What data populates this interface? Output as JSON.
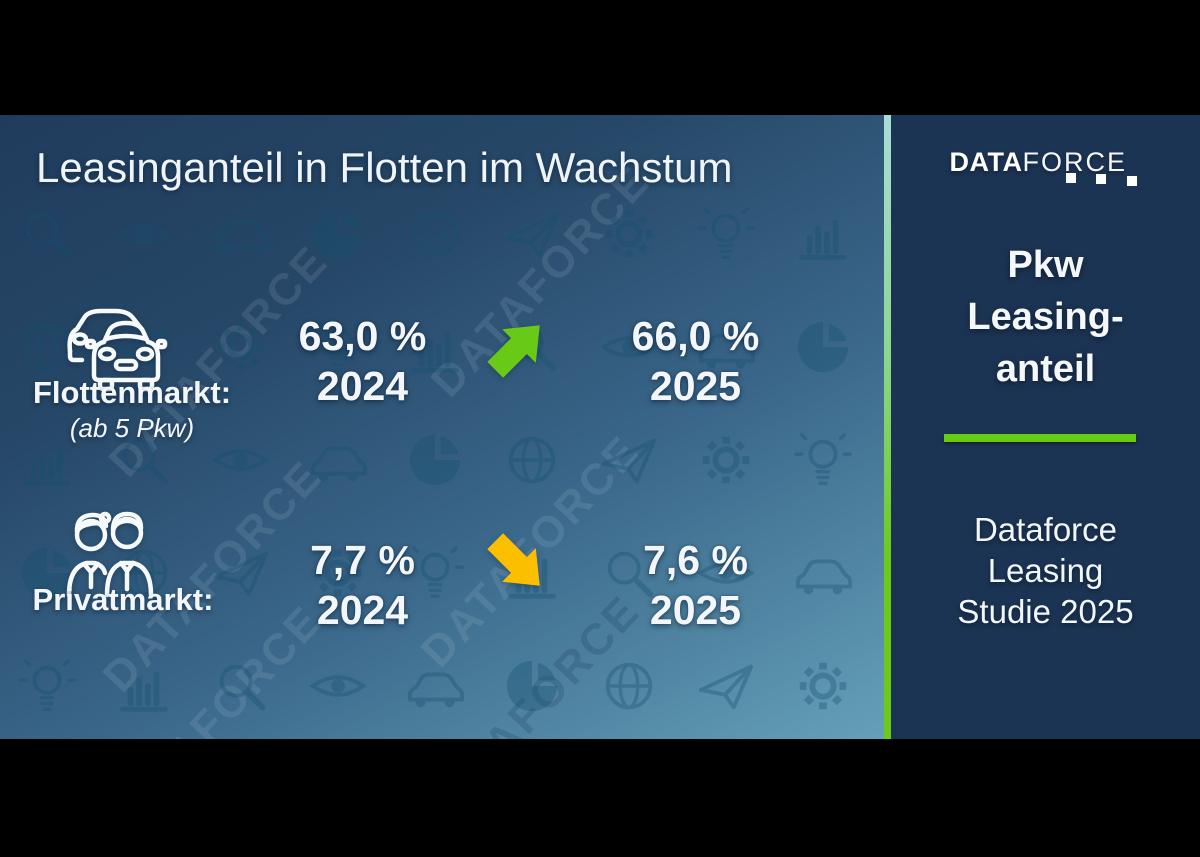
{
  "slide": {
    "title": "Leasinganteil in Flotten im Wachstum"
  },
  "logo": {
    "bold": "DATA",
    "light": "FORCE"
  },
  "sidebar": {
    "heading_line1": "Pkw",
    "heading_line2": "Leasing-",
    "heading_line3": "anteil",
    "caption_line1": "Dataforce",
    "caption_line2": "Leasing",
    "caption_line3": "Studie 2025"
  },
  "rows": [
    {
      "icon": "fleet-cars-icon",
      "label": "Flottenmarkt:",
      "sublabel": "(ab 5 Pkw)",
      "left_value": "63,0 %",
      "left_year": "2024",
      "trend": "up",
      "right_value": "66,0 %",
      "right_year": "2025"
    },
    {
      "icon": "private-people-icon",
      "label": "Privatmarkt:",
      "sublabel": "",
      "left_value": "7,7 %",
      "left_year": "2024",
      "trend": "down",
      "right_value": "7,6 %",
      "right_year": "2025"
    }
  ],
  "watermark": {
    "text": "DATAFORCE",
    "icons": [
      "magnifier-icon",
      "eye-icon",
      "car-icon",
      "pie-chart-icon",
      "globe-icon",
      "paper-plane-icon",
      "gear-icon",
      "light-bulb-icon",
      "bar-chart-icon"
    ]
  },
  "colors": {
    "up_arrow": "#68c917",
    "down_arrow": "#fcbf00",
    "divider_green": "#68cb10",
    "sidebar_bg": "#1c3453",
    "separator_top_teal": "#a8ddd8"
  },
  "chart_data": {
    "type": "table",
    "title": "Leasinganteil in Flotten im Wachstum",
    "unit": "%",
    "categories": [
      "Flottenmarkt (ab 5 Pkw)",
      "Privatmarkt"
    ],
    "series": [
      {
        "name": "2024",
        "values": [
          63.0,
          7.7
        ]
      },
      {
        "name": "2025",
        "values": [
          66.0,
          7.6
        ]
      }
    ],
    "trends": [
      "up",
      "down"
    ],
    "source": "Dataforce Leasing Studie 2025"
  }
}
